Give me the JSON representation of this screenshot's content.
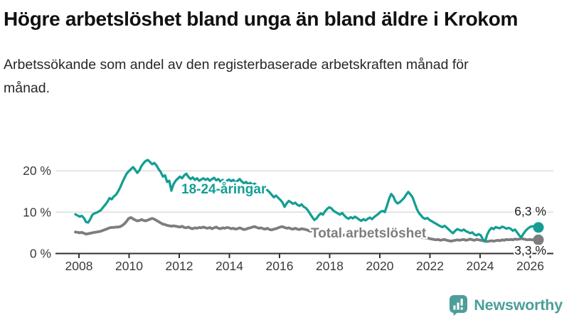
{
  "header": {
    "title": "Högre arbetslöshet bland unga än bland äldre i Krokom",
    "subtitle": "Arbetssökande som andel av den registerbaserade arbetskraften månad för månad."
  },
  "branding": {
    "name": "Newsworthy",
    "logo_icon": "bar-chart-speech-bubble-icon",
    "color": "#4d9e9a"
  },
  "chart_data": {
    "type": "line",
    "title": "Högre arbetslöshet bland unga än bland äldre i Krokom",
    "subtitle": "Arbetssökande som andel av den registerbaserade arbetskraften månad för månad.",
    "unit": "%",
    "x_start_month": "2008-01",
    "x_end_month": "2026-02",
    "points_per_year": 12,
    "x_ticks": [
      "2008",
      "2010",
      "2012",
      "2014",
      "2016",
      "2018",
      "2020",
      "2022",
      "2024",
      "2026"
    ],
    "y_ticks": [
      {
        "value": 0,
        "label": "0 %"
      },
      {
        "value": 10,
        "label": "10 %"
      },
      {
        "value": 20,
        "label": "20 %"
      }
    ],
    "ylim": [
      0,
      24
    ],
    "grid": "horizontal",
    "legend_position": "inline-labels",
    "colors": {
      "grid": "#d9d9d9",
      "axis": "#333333",
      "tick_label": "#3a3a3a",
      "end_label": "#1a1a1a"
    },
    "series": [
      {
        "name": "18-24-åringar",
        "color": "#149e93",
        "end_label": "6,3 %",
        "end_value": 6.3,
        "values": [
          9.5,
          9.2,
          8.9,
          9.1,
          8.6,
          7.6,
          7.5,
          8.3,
          9.4,
          9.7,
          9.9,
          10.2,
          10.5,
          11.2,
          11.8,
          12.5,
          13.4,
          13.1,
          13.8,
          14.2,
          15.0,
          16.0,
          17.2,
          18.3,
          19.3,
          19.9,
          20.4,
          20.9,
          20.3,
          19.5,
          20.1,
          21.2,
          21.9,
          22.4,
          22.6,
          22.1,
          21.6,
          21.9,
          21.3,
          20.4,
          19.7,
          18.6,
          18.9,
          17.3,
          17.6,
          15.2,
          16.8,
          17.6,
          18.1,
          18.6,
          18.2,
          18.9,
          19.3,
          18.5,
          18.0,
          18.4,
          17.8,
          18.2,
          17.6,
          17.9,
          18.2,
          17.8,
          18.1,
          17.6,
          18.0,
          18.3,
          17.7,
          18.0,
          17.4,
          17.8,
          17.2,
          17.6,
          17.9,
          17.5,
          17.8,
          17.2,
          17.6,
          18.0,
          17.4,
          17.0,
          17.3,
          16.8,
          17.1,
          16.6,
          16.9,
          16.4,
          15.9,
          16.2,
          15.6,
          15.9,
          15.3,
          14.8,
          14.2,
          13.6,
          14.0,
          13.5,
          13.0,
          12.4,
          11.3,
          12.1,
          12.7,
          12.4,
          12.0,
          12.3,
          11.8,
          11.5,
          11.9,
          11.3,
          11.0,
          10.4,
          9.6,
          8.8,
          8.1,
          8.5,
          9.2,
          9.7,
          9.4,
          10.2,
          10.8,
          11.2,
          10.9,
          10.3,
          10.0,
          9.7,
          9.4,
          9.8,
          9.2,
          8.7,
          8.4,
          8.8,
          8.5,
          8.9,
          8.6,
          8.2,
          7.9,
          8.3,
          8.0,
          8.4,
          8.7,
          8.3,
          8.8,
          9.2,
          9.6,
          10.1,
          10.3,
          10.0,
          11.5,
          13.2,
          14.4,
          13.8,
          12.6,
          12.1,
          12.4,
          12.9,
          13.4,
          14.2,
          14.9,
          14.3,
          13.6,
          12.2,
          10.8,
          9.8,
          9.2,
          8.6,
          8.4,
          8.6,
          8.1,
          7.8,
          7.5,
          7.2,
          6.9,
          6.6,
          6.4,
          6.7,
          6.3,
          5.8,
          5.3,
          4.9,
          5.5,
          5.9,
          5.7,
          5.5,
          5.8,
          5.4,
          5.2,
          4.9,
          5.1,
          4.6,
          4.4,
          4.7,
          4.4,
          3.4,
          2.9,
          4.6,
          5.6,
          6.2,
          5.9,
          6.4,
          6.2,
          6.1,
          6.5,
          6.3,
          6.0,
          6.2,
          6.0,
          5.5,
          5.8,
          5.1,
          4.4,
          3.9,
          4.8,
          5.5,
          6.0,
          6.4,
          6.6,
          6.5,
          6.4,
          6.3
        ]
      },
      {
        "name": "Total arbetslöshet",
        "color": "#7d7d7d",
        "end_label": "3,3 %",
        "end_value": 3.3,
        "values": [
          5.2,
          5.1,
          5.0,
          5.1,
          4.9,
          4.7,
          4.8,
          4.9,
          5.0,
          5.1,
          5.2,
          5.3,
          5.4,
          5.6,
          5.8,
          6.0,
          6.2,
          6.3,
          6.3,
          6.4,
          6.4,
          6.5,
          6.8,
          7.2,
          7.8,
          8.5,
          8.7,
          8.4,
          8.1,
          7.9,
          8.0,
          8.2,
          8.0,
          7.9,
          8.1,
          8.3,
          8.5,
          8.3,
          8.0,
          7.7,
          7.4,
          7.1,
          7.0,
          6.8,
          6.7,
          6.6,
          6.7,
          6.6,
          6.5,
          6.4,
          6.6,
          6.3,
          6.2,
          6.4,
          6.1,
          6.0,
          6.2,
          6.1,
          6.3,
          6.2,
          6.4,
          6.2,
          6.1,
          6.3,
          6.0,
          6.2,
          6.4,
          6.1,
          6.0,
          6.2,
          6.1,
          6.3,
          6.2,
          6.0,
          6.1,
          5.9,
          6.0,
          6.2,
          6.0,
          5.8,
          5.9,
          6.1,
          6.2,
          6.4,
          6.5,
          6.3,
          6.1,
          6.2,
          6.0,
          5.9,
          6.1,
          5.8,
          5.7,
          5.9,
          6.0,
          6.2,
          6.4,
          6.5,
          6.3,
          6.1,
          6.2,
          6.0,
          5.9,
          6.1,
          5.9,
          5.8,
          6.0,
          5.9,
          5.8,
          5.6,
          5.4,
          5.5,
          5.3,
          5.2,
          5.4,
          5.1,
          5.0,
          4.9,
          5.0,
          4.8,
          4.7,
          4.6,
          4.5,
          4.6,
          4.4,
          4.3,
          4.5,
          4.2,
          4.1,
          4.2,
          4.1,
          4.2,
          4.1,
          4.0,
          3.9,
          4.0,
          3.9,
          4.0,
          4.1,
          3.9,
          4.0,
          4.1,
          4.2,
          4.3,
          4.4,
          4.3,
          4.6,
          4.9,
          5.0,
          4.9,
          4.8,
          4.7,
          4.6,
          4.7,
          4.6,
          4.7,
          4.8,
          4.7,
          4.5,
          4.3,
          4.2,
          4.0,
          3.9,
          3.8,
          3.7,
          3.8,
          3.6,
          3.5,
          3.4,
          3.3,
          3.4,
          3.2,
          3.3,
          3.4,
          3.2,
          3.1,
          3.0,
          3.1,
          3.2,
          3.3,
          3.2,
          3.3,
          3.4,
          3.2,
          3.3,
          3.5,
          3.3,
          3.2,
          3.4,
          3.3,
          3.2,
          3.1,
          3.0,
          2.9,
          3.0,
          3.1,
          3.0,
          3.1,
          3.2,
          3.1,
          3.3,
          3.2,
          3.4,
          3.3,
          3.4,
          3.3,
          3.5,
          3.4,
          3.5,
          3.6,
          3.5,
          3.4,
          3.3,
          3.4,
          3.3,
          3.4,
          3.3,
          3.3
        ]
      }
    ]
  }
}
